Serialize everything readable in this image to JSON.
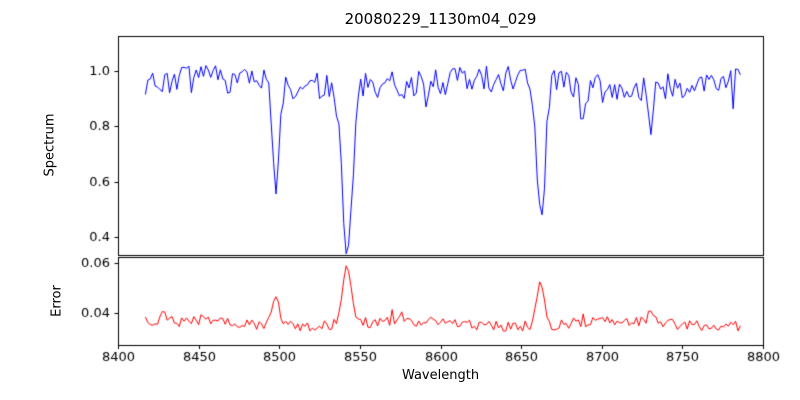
{
  "chart_data": {
    "type": "line",
    "title": "20080229_1130m04_029",
    "xlabel": "Wavelength",
    "legend_position": "none",
    "grid": false,
    "seed": 7,
    "x": {
      "range": [
        8400,
        8800
      ],
      "tick_values": [
        8400,
        8450,
        8500,
        8550,
        8600,
        8650,
        8700,
        8750,
        8800
      ],
      "tick_labels": [
        "8400",
        "8450",
        "8500",
        "8550",
        "8600",
        "8650",
        "8700",
        "8750",
        "8800"
      ],
      "data_start": 8417,
      "data_end": 8786,
      "step": 1.5
    },
    "panels": [
      {
        "name": "spectrum",
        "ylabel": "Spectrum",
        "color": "#0000ff",
        "ylim": [
          0.335,
          1.125
        ],
        "tick_values": [
          0.4,
          0.6,
          0.8,
          1.0
        ],
        "tick_labels": [
          "0.4",
          "0.6",
          "0.8",
          "1.0"
        ],
        "continuum_level": 0.955,
        "noise_amplitude": 0.05,
        "spike_prob": 0.05,
        "spike_depth": 0.06,
        "wiggle": {
          "amp": 0.015,
          "period": 30
        },
        "absorption_lines": [
          {
            "center": 8498.0,
            "depth": 0.375,
            "sigma": 2.2,
            "min_value": 0.58
          },
          {
            "center": 8542.1,
            "depth": 0.585,
            "sigma": 3.2,
            "min_value": 0.37
          },
          {
            "center": 8662.1,
            "depth": 0.5,
            "sigma": 2.8,
            "min_value": 0.45
          },
          {
            "center": 8688.0,
            "depth": 0.1,
            "sigma": 1.8,
            "min_value": 0.85
          },
          {
            "center": 8730.0,
            "depth": 0.17,
            "sigma": 1.8,
            "min_value": 0.78
          }
        ]
      },
      {
        "name": "error",
        "ylabel": "Error",
        "color": "#ff0000",
        "ylim": [
          0.027,
          0.0625
        ],
        "tick_values": [
          0.04,
          0.06
        ],
        "tick_labels": [
          "0.04",
          "0.06"
        ],
        "baseline": 0.0355,
        "noise_amplitude": 0.0022,
        "spike_prob": 0.05,
        "spike_height": 0.004,
        "wiggle": {
          "amp": 0.001,
          "period": 22
        },
        "spikes": [
          {
            "center": 8428.0,
            "height": 0.004,
            "sigma": 1.6
          },
          {
            "center": 8465.0,
            "height": 0.003,
            "sigma": 1.6
          },
          {
            "center": 8498.0,
            "height": 0.012,
            "sigma": 2.2,
            "peak_value": 0.05
          },
          {
            "center": 8542.1,
            "height": 0.0235,
            "sigma": 2.6,
            "peak_value": 0.06
          },
          {
            "center": 8662.1,
            "height": 0.019,
            "sigma": 2.2,
            "peak_value": 0.055
          },
          {
            "center": 8730.0,
            "height": 0.004,
            "sigma": 1.8
          }
        ]
      }
    ]
  }
}
